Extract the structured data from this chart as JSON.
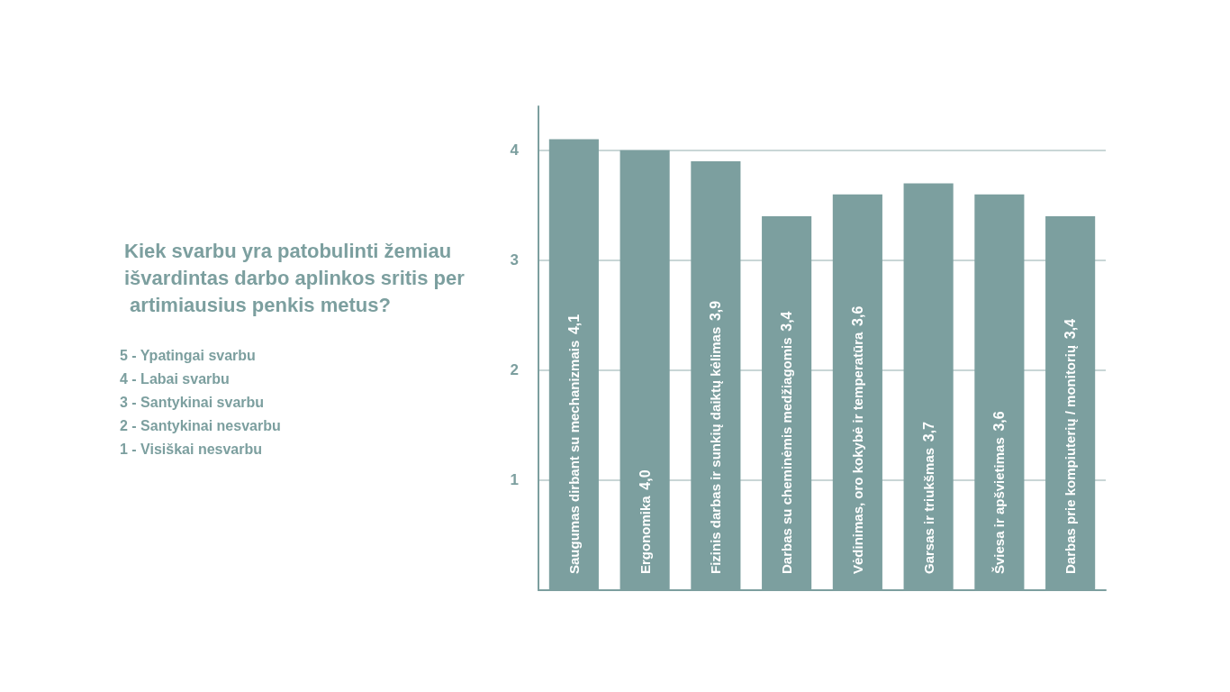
{
  "chart_data": {
    "type": "bar",
    "title": "Kiek svarbu yra patobulinti žemiau išvardintas darbo aplinkos sritis per artimiausius penkis metus?",
    "annotations": [
      "5 - Ypatingai svarbu",
      "4 - Labai svarbu",
      "3 - Santykinai svarbu",
      "2 - Santykinai nesvarbu",
      "1 - Visiškai nesvarbu"
    ],
    "categories": [
      "Saugumas dirbant su mechanizmais",
      "Ergonomika",
      "Fizinis darbas ir sunkių daiktų kėlimas",
      "Darbas su cheminėmis medžiagomis",
      "Vėdinimas, oro kokybė ir temperatūra",
      "Garsas ir triukšmas",
      "Šviesa ir apšvietimas",
      "Darbas prie kompiuterių / monitorių"
    ],
    "values": [
      4.1,
      4.0,
      3.9,
      3.4,
      3.6,
      3.7,
      3.6,
      3.4
    ],
    "value_labels": [
      "4,1",
      "4,0",
      "3,9",
      "3,4",
      "3,6",
      "3,7",
      "3,6",
      "3,4"
    ],
    "color": "#7c9f9f",
    "ylim": [
      0,
      4.4
    ],
    "yticks": [
      {
        "value": 0,
        "label": null
      },
      1,
      2,
      3,
      4
    ],
    "grid": "y"
  }
}
